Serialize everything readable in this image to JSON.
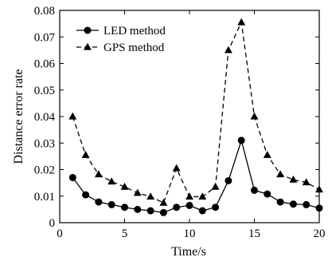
{
  "chart_data": {
    "type": "line",
    "xlabel": "Time/s",
    "ylabel": "Distance error rate",
    "xlim": [
      0,
      20
    ],
    "ylim": [
      0,
      0.08
    ],
    "xticks": [
      0,
      5,
      10,
      15,
      20
    ],
    "yticks": [
      0,
      0.01,
      0.02,
      0.03,
      0.04,
      0.05,
      0.06,
      0.07,
      0.08
    ],
    "x_tick_labels": [
      "0",
      "5",
      "10",
      "15",
      "20"
    ],
    "y_tick_labels": [
      "0",
      "0.01",
      "0.02",
      "0.03",
      "0.04",
      "0.05",
      "0.06",
      "0.07",
      "0.08"
    ],
    "grid": false,
    "legend_position": "top-left",
    "x": [
      1,
      2,
      3,
      4,
      5,
      6,
      7,
      8,
      9,
      10,
      11,
      12,
      13,
      14,
      15,
      16,
      17,
      18,
      19,
      20
    ],
    "series": [
      {
        "name": "LED method",
        "marker": "circle",
        "line_style": "solid",
        "color": "#000000",
        "values": [
          0.017,
          0.0105,
          0.0078,
          0.0068,
          0.0058,
          0.005,
          0.0045,
          0.0038,
          0.0058,
          0.0065,
          0.0045,
          0.0058,
          0.0158,
          0.031,
          0.0122,
          0.0108,
          0.0078,
          0.007,
          0.0068,
          0.0055
        ]
      },
      {
        "name": "GPS method",
        "marker": "triangle",
        "line_style": "dashed",
        "color": "#000000",
        "values": [
          0.04,
          0.0255,
          0.0182,
          0.0155,
          0.0135,
          0.0112,
          0.0098,
          0.0075,
          0.0205,
          0.0098,
          0.0098,
          0.0135,
          0.065,
          0.0755,
          0.04,
          0.0255,
          0.0182,
          0.0162,
          0.0152,
          0.0125
        ]
      }
    ]
  }
}
